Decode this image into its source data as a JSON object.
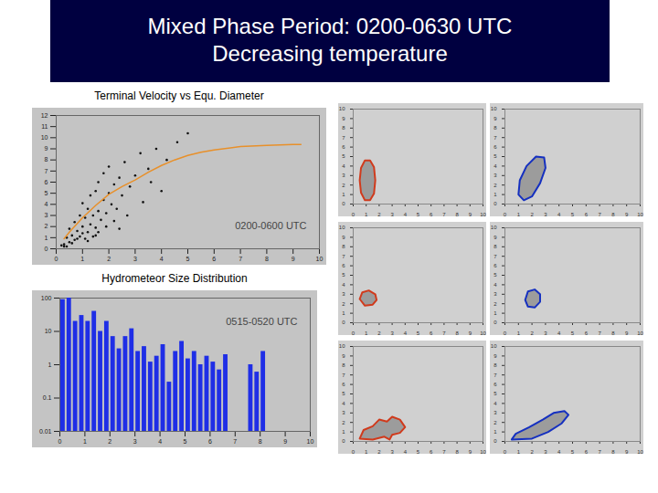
{
  "slide": {
    "title": "Mixed Phase Period: 0200-0630 UTC",
    "subtitle": "Decreasing temperature"
  },
  "chart_data": [
    {
      "type": "scatter",
      "title": "Terminal Velocity vs Equ. Diameter",
      "annotation": "0200-0600 UTC",
      "x": [
        0.3,
        0.4,
        0.5,
        0.5,
        0.6,
        0.7,
        0.7,
        0.8,
        0.9,
        0.9,
        1.0,
        1.0,
        1.1,
        1.2,
        1.2,
        1.3,
        1.3,
        1.4,
        1.5,
        1.5,
        1.6,
        1.6,
        1.7,
        1.8,
        1.8,
        1.9,
        2.0,
        2.0,
        2.1,
        2.2,
        2.3,
        2.4,
        2.5,
        2.6,
        2.8,
        3.0,
        3.2,
        3.5,
        3.8,
        4.2,
        4.6,
        5.0,
        0.4,
        0.6,
        0.8,
        1.0,
        1.2,
        1.4,
        1.6,
        1.9,
        2.2,
        2.7,
        3.3,
        4.0,
        0.2,
        0.3,
        1.1,
        1.5,
        2.4,
        3.6
      ],
      "values": [
        0.4,
        1.0,
        0.6,
        1.8,
        1.2,
        0.8,
        2.4,
        1.6,
        3.0,
        1.1,
        2.0,
        4.1,
        2.8,
        1.5,
        3.6,
        2.2,
        4.8,
        3.0,
        1.9,
        5.2,
        3.4,
        6.0,
        2.6,
        4.4,
        6.8,
        3.2,
        5.0,
        7.4,
        4.0,
        5.8,
        3.6,
        6.4,
        4.8,
        7.8,
        5.6,
        6.6,
        8.6,
        7.2,
        9.0,
        8.0,
        9.6,
        10.4,
        0.2,
        0.5,
        0.9,
        1.4,
        0.7,
        1.1,
        1.5,
        2.0,
        2.5,
        3.0,
        4.2,
        5.2,
        0.3,
        0.2,
        0.9,
        1.2,
        1.8,
        6.0
      ],
      "color": "#111111",
      "fit": {
        "x": [
          0.3,
          0.5,
          1,
          1.5,
          2,
          2.5,
          3,
          3.5,
          4,
          4.5,
          5,
          5.5,
          6,
          7,
          8,
          9,
          9.3
        ],
        "values": [
          0.9,
          1.5,
          2.8,
          3.9,
          4.9,
          5.6,
          6.2,
          6.9,
          7.5,
          8.0,
          8.4,
          8.7,
          8.9,
          9.2,
          9.3,
          9.4,
          9.4
        ],
        "color": "#e8902a"
      },
      "xlim": [
        0,
        10
      ],
      "xticks": [
        0,
        1,
        2,
        3,
        4,
        5,
        6,
        7,
        8,
        9,
        10
      ],
      "ylim": [
        0,
        12
      ],
      "yticks": [
        0,
        1,
        2,
        3,
        4,
        5,
        6,
        7,
        8,
        9,
        10,
        11,
        12
      ]
    },
    {
      "type": "histogram",
      "title": "Hydrometeor Size Distribution",
      "annotation": "0515-0520 UTC",
      "bins": [
        0,
        0.25,
        0.5,
        0.75,
        1,
        1.25,
        1.5,
        1.75,
        2,
        2.25,
        2.5,
        2.75,
        3,
        3.25,
        3.5,
        3.75,
        4,
        4.25,
        4.5,
        4.75,
        5,
        5.25,
        5.5,
        5.75,
        6,
        6.25,
        6.5,
        6.75,
        7,
        7.25,
        7.5,
        7.75,
        8,
        8.25
      ],
      "values": [
        90,
        100,
        20,
        30,
        20,
        40,
        10,
        20,
        7,
        3,
        7,
        12,
        2.5,
        3.5,
        1.2,
        1.8,
        4,
        0.3,
        2.5,
        5,
        1.5,
        2.5,
        1,
        1.8,
        1.2,
        0.7,
        2,
        null,
        null,
        null,
        1,
        0.6,
        2.5
      ],
      "color": "#1f2ee6",
      "log": "y",
      "xlim": [
        0,
        10
      ],
      "xticks": [
        0,
        1,
        2,
        3,
        4,
        5,
        6,
        7,
        8,
        9,
        10
      ],
      "ylim": [
        0.01,
        100
      ],
      "yticks": [
        0.01,
        0.1,
        1,
        10,
        100
      ]
    },
    {
      "type": "area",
      "series": [
        {
          "color": "#d03a1c",
          "x": [
            0.5,
            0.6,
            0.9,
            1.3,
            1.6,
            1.7,
            1.6,
            1.3,
            0.9,
            0.6,
            0.5
          ],
          "values": [
            2.5,
            3.8,
            4.6,
            4.6,
            3.9,
            2.5,
            1.1,
            0.4,
            0.4,
            1.2,
            2.5
          ]
        }
      ],
      "xlim": [
        0,
        10
      ],
      "xticks": [
        0,
        1,
        2,
        3,
        4,
        5,
        6,
        7,
        8,
        9,
        10
      ],
      "ylim": [
        0,
        10
      ],
      "yticks": [
        0,
        1,
        2,
        3,
        4,
        5,
        6,
        7,
        8,
        9,
        10
      ]
    },
    {
      "type": "area",
      "series": [
        {
          "color": "#1530c0",
          "x": [
            1.0,
            1.1,
            1.6,
            2.3,
            2.9,
            3.0,
            2.6,
            2.0,
            1.4,
            1.0
          ],
          "values": [
            1.0,
            2.5,
            4.0,
            5.0,
            4.9,
            3.8,
            2.2,
            0.8,
            0.4,
            1.0
          ]
        }
      ],
      "xlim": [
        0,
        10
      ],
      "xticks": [
        0,
        1,
        2,
        3,
        4,
        5,
        6,
        7,
        8,
        9,
        10
      ],
      "ylim": [
        0,
        10
      ],
      "yticks": [
        0,
        1,
        2,
        3,
        4,
        5,
        6,
        7,
        8,
        9,
        10
      ]
    },
    {
      "type": "area",
      "series": [
        {
          "color": "#d03a1c",
          "x": [
            0.5,
            0.7,
            1.2,
            1.7,
            1.8,
            1.5,
            0.9,
            0.5
          ],
          "values": [
            2.5,
            3.2,
            3.4,
            3.0,
            2.4,
            1.9,
            1.8,
            2.5
          ]
        }
      ],
      "xlim": [
        0,
        10
      ],
      "xticks": [
        0,
        1,
        2,
        3,
        4,
        5,
        6,
        7,
        8,
        9,
        10
      ],
      "ylim": [
        0,
        10
      ],
      "yticks": [
        0,
        1,
        2,
        3,
        4,
        5,
        6,
        7,
        8,
        9,
        10
      ]
    },
    {
      "type": "area",
      "series": [
        {
          "color": "#1530c0",
          "x": [
            1.5,
            1.7,
            2.2,
            2.6,
            2.6,
            2.2,
            1.7,
            1.5
          ],
          "values": [
            2.4,
            3.3,
            3.5,
            3.0,
            2.2,
            1.6,
            1.7,
            2.4
          ]
        }
      ],
      "xlim": [
        0,
        10
      ],
      "xticks": [
        0,
        1,
        2,
        3,
        4,
        5,
        6,
        7,
        8,
        9,
        10
      ],
      "ylim": [
        0,
        10
      ],
      "yticks": [
        0,
        1,
        2,
        3,
        4,
        5,
        6,
        7,
        8,
        9,
        10
      ]
    },
    {
      "type": "area",
      "series": [
        {
          "color": "#d03a1c",
          "x": [
            0.5,
            0.8,
            1.5,
            2.0,
            2.6,
            3.0,
            3.6,
            4.0,
            3.6,
            3.0,
            2.8,
            2.4,
            1.5,
            0.5
          ],
          "values": [
            0.3,
            1.2,
            1.6,
            2.3,
            2.1,
            2.6,
            2.3,
            1.5,
            0.9,
            0.7,
            0.2,
            0.5,
            0.2,
            0.3
          ]
        }
      ],
      "xlim": [
        0,
        10
      ],
      "xticks": [
        0,
        1,
        2,
        3,
        4,
        5,
        6,
        7,
        8,
        9,
        10
      ],
      "ylim": [
        0,
        10
      ],
      "yticks": [
        0,
        1,
        2,
        3,
        4,
        5,
        6,
        7,
        8,
        9,
        10
      ]
    },
    {
      "type": "area",
      "series": [
        {
          "color": "#1530c0",
          "x": [
            0.5,
            0.8,
            1.8,
            2.8,
            3.6,
            4.4,
            4.7,
            4.2,
            3.2,
            2.0,
            0.5
          ],
          "values": [
            0.2,
            0.8,
            1.5,
            2.3,
            3.0,
            3.2,
            2.8,
            1.9,
            1.0,
            0.3,
            0.2
          ]
        }
      ],
      "xlim": [
        0,
        10
      ],
      "xticks": [
        0,
        1,
        2,
        3,
        4,
        5,
        6,
        7,
        8,
        9,
        10
      ],
      "ylim": [
        0,
        10
      ],
      "yticks": [
        0,
        1,
        2,
        3,
        4,
        5,
        6,
        7,
        8,
        9,
        10
      ]
    }
  ]
}
